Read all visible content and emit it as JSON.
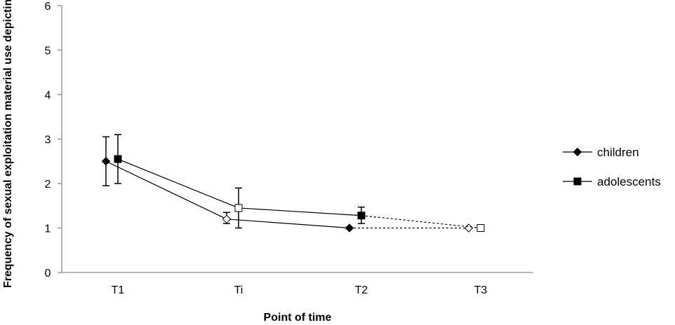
{
  "chart_data": {
    "type": "line",
    "xlabel": "Point of time",
    "ylabel": "Frequency of sexual exploitation material use depicting",
    "ylim": [
      0,
      6
    ],
    "yticks": [
      0,
      1,
      2,
      3,
      4,
      5,
      6
    ],
    "categories": [
      "T1",
      "Ti",
      "T2",
      "T3"
    ],
    "grid": false,
    "legend_position": "right",
    "series": [
      {
        "name": "children",
        "marker": "diamond",
        "points": [
          {
            "category": "T1",
            "y": 2.5,
            "error": [
              1.95,
              3.05
            ],
            "filled": true
          },
          {
            "category": "Ti",
            "y": 1.2,
            "error": [
              1.1,
              1.35
            ],
            "filled": false
          },
          {
            "category": "T2",
            "y": 1.0,
            "filled": true
          },
          {
            "category": "T3",
            "y": 1.0,
            "filled": false
          }
        ],
        "segments": [
          {
            "from": 0,
            "to": 1,
            "style": "solid"
          },
          {
            "from": 1,
            "to": 2,
            "style": "solid"
          },
          {
            "from": 2,
            "to": 3,
            "style": "dashed"
          }
        ]
      },
      {
        "name": "adolescents",
        "marker": "square",
        "points": [
          {
            "category": "T1",
            "y": 2.55,
            "error": [
              2.0,
              3.1
            ],
            "filled": true
          },
          {
            "category": "Ti",
            "y": 1.45,
            "error": [
              1.0,
              1.9
            ],
            "filled": false
          },
          {
            "category": "T2",
            "y": 1.28,
            "error": [
              1.1,
              1.47
            ],
            "filled": true
          },
          {
            "category": "T3",
            "y": 1.0,
            "filled": false
          }
        ],
        "segments": [
          {
            "from": 0,
            "to": 1,
            "style": "solid"
          },
          {
            "from": 1,
            "to": 2,
            "style": "solid"
          },
          {
            "from": 2,
            "to": 3,
            "style": "dashed"
          }
        ]
      }
    ]
  }
}
